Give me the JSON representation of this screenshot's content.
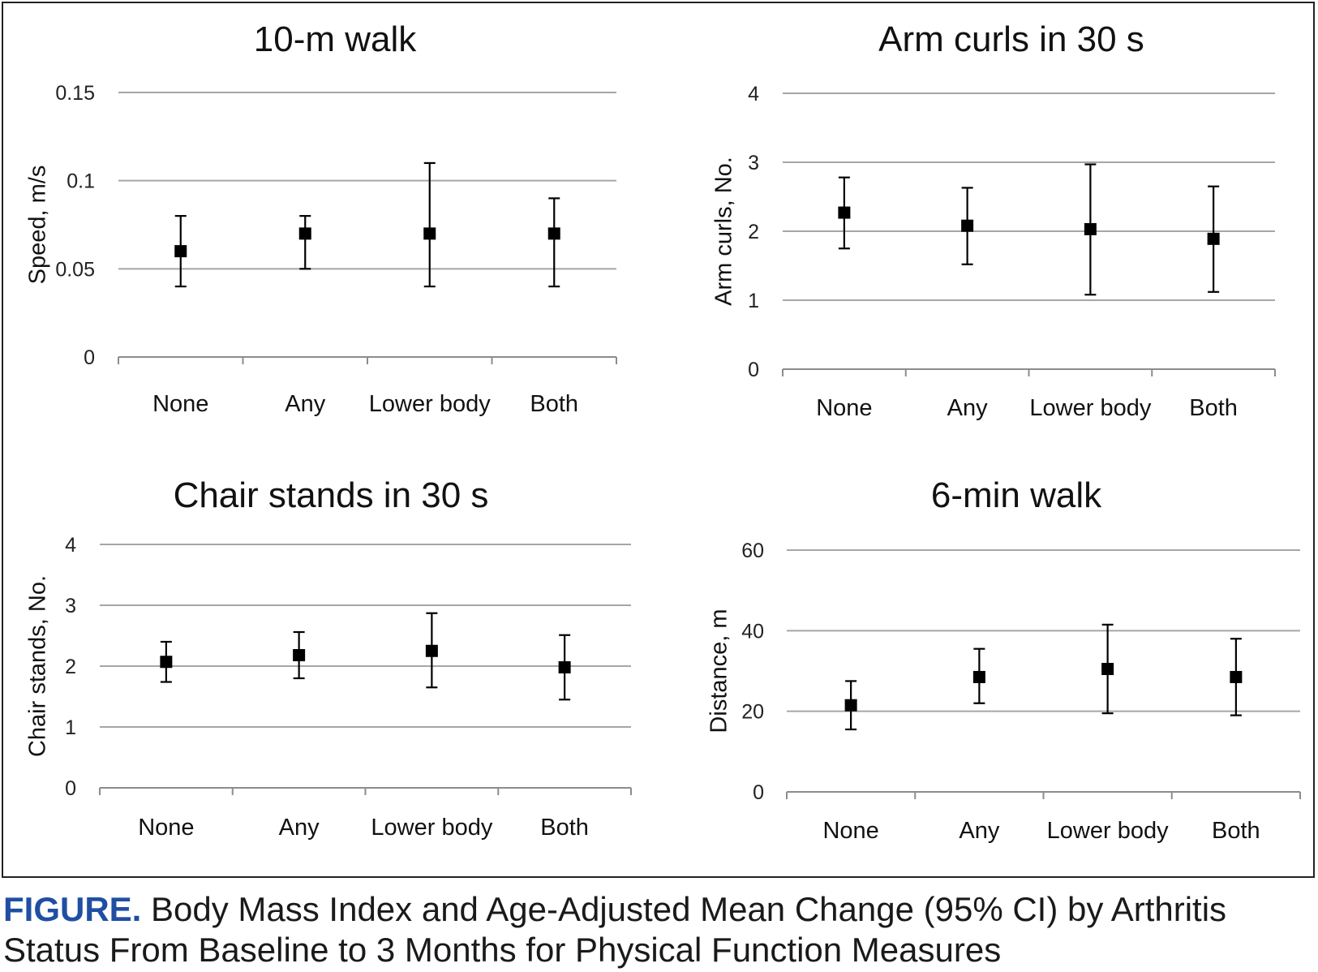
{
  "caption": {
    "lead": "FIGURE.",
    "text": " Body Mass Index and Age-Adjusted Mean Change (95% CI) by Arthritis Status From Baseline to 3 Months for Physical Function Measures"
  },
  "colors": {
    "marker": "#000000",
    "gridline": "#a6a6a6",
    "caption_lead": "#1f4fa3"
  },
  "chart_data": [
    {
      "type": "scatter",
      "title": "10-m walk",
      "ylabel": "Speed, m/s",
      "xlabel": "",
      "categories": [
        "None",
        "Any",
        "Lower body",
        "Both"
      ],
      "ylim": [
        0,
        0.15
      ],
      "yticks": [
        0,
        0.05,
        0.1,
        0.15
      ],
      "ytick_labels": [
        "0",
        "0.05",
        "0.1",
        "0.15"
      ],
      "grid": true,
      "series": [
        {
          "values": [
            0.06,
            0.07,
            0.07,
            0.07
          ],
          "lower": [
            0.04,
            0.05,
            0.04,
            0.04
          ],
          "upper": [
            0.08,
            0.08,
            0.11,
            0.09
          ]
        }
      ]
    },
    {
      "type": "scatter",
      "title": "Arm curls in 30 s",
      "ylabel": "Arm curls, No.",
      "xlabel": "",
      "categories": [
        "None",
        "Any",
        "Lower body",
        "Both"
      ],
      "ylim": [
        0,
        4
      ],
      "yticks": [
        0,
        1,
        2,
        3,
        4
      ],
      "ytick_labels": [
        "0",
        "1",
        "2",
        "3",
        "4"
      ],
      "grid": true,
      "series": [
        {
          "values": [
            2.27,
            2.08,
            2.03,
            1.89
          ],
          "lower": [
            1.75,
            1.52,
            1.08,
            1.12
          ],
          "upper": [
            2.78,
            2.63,
            2.97,
            2.65
          ]
        }
      ]
    },
    {
      "type": "scatter",
      "title": "Chair stands in 30 s",
      "ylabel": "Chair stands, No.",
      "xlabel": "",
      "categories": [
        "None",
        "Any",
        "Lower body",
        "Both"
      ],
      "ylim": [
        0,
        4
      ],
      "yticks": [
        0,
        1,
        2,
        3,
        4
      ],
      "ytick_labels": [
        "0",
        "1",
        "2",
        "3",
        "4"
      ],
      "grid": true,
      "series": [
        {
          "values": [
            2.07,
            2.18,
            2.25,
            1.98
          ],
          "lower": [
            1.74,
            1.8,
            1.65,
            1.45
          ],
          "upper": [
            2.4,
            2.56,
            2.87,
            2.51
          ]
        }
      ]
    },
    {
      "type": "scatter",
      "title": "6-min walk",
      "ylabel": "Distance, m",
      "xlabel": "",
      "categories": [
        "None",
        "Any",
        "Lower body",
        "Both"
      ],
      "ylim": [
        0,
        60
      ],
      "yticks": [
        0,
        20,
        40,
        60
      ],
      "ytick_labels": [
        "0",
        "20",
        "40",
        "60"
      ],
      "grid": true,
      "series": [
        {
          "values": [
            21.5,
            28.5,
            30.5,
            28.5
          ],
          "lower": [
            15.5,
            22,
            19.5,
            19
          ],
          "upper": [
            27.5,
            35.5,
            41.5,
            38
          ]
        }
      ]
    }
  ]
}
